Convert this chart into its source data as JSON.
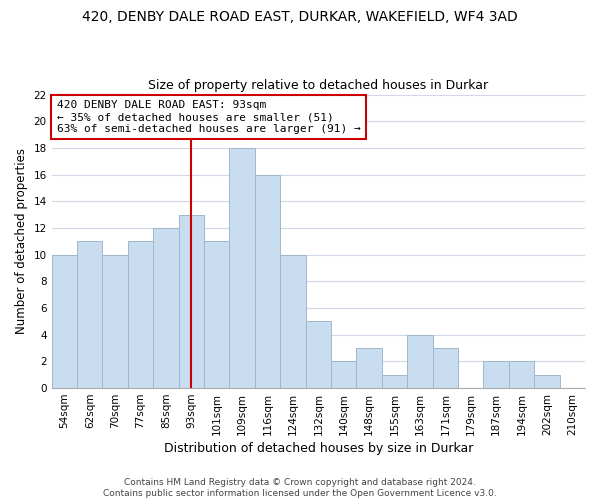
{
  "title": "420, DENBY DALE ROAD EAST, DURKAR, WAKEFIELD, WF4 3AD",
  "subtitle": "Size of property relative to detached houses in Durkar",
  "xlabel": "Distribution of detached houses by size in Durkar",
  "ylabel": "Number of detached properties",
  "bin_labels": [
    "54sqm",
    "62sqm",
    "70sqm",
    "77sqm",
    "85sqm",
    "93sqm",
    "101sqm",
    "109sqm",
    "116sqm",
    "124sqm",
    "132sqm",
    "140sqm",
    "148sqm",
    "155sqm",
    "163sqm",
    "171sqm",
    "179sqm",
    "187sqm",
    "194sqm",
    "202sqm",
    "210sqm"
  ],
  "bar_values": [
    10,
    11,
    10,
    11,
    12,
    13,
    11,
    18,
    16,
    10,
    5,
    2,
    3,
    1,
    4,
    3,
    0,
    2,
    2,
    1,
    0
  ],
  "bar_color": "#c8ddf0",
  "bar_edge_color": "#a0b8cc",
  "highlight_idx": 5,
  "highlight_line_color": "#cc0000",
  "annotation_line1": "420 DENBY DALE ROAD EAST: 93sqm",
  "annotation_line2": "← 35% of detached houses are smaller (51)",
  "annotation_line3": "63% of semi-detached houses are larger (91) →",
  "annotation_box_edge_color": "#cc0000",
  "annotation_box_face_color": "#ffffff",
  "ylim": [
    0,
    22
  ],
  "yticks": [
    0,
    2,
    4,
    6,
    8,
    10,
    12,
    14,
    16,
    18,
    20,
    22
  ],
  "grid_color": "#d0d8e8",
  "footer_text": "Contains HM Land Registry data © Crown copyright and database right 2024.\nContains public sector information licensed under the Open Government Licence v3.0.",
  "background_color": "#ffffff",
  "title_fontsize": 10,
  "subtitle_fontsize": 9,
  "xlabel_fontsize": 9,
  "ylabel_fontsize": 8.5,
  "tick_fontsize": 7.5,
  "annotation_fontsize": 8,
  "footer_fontsize": 6.5
}
